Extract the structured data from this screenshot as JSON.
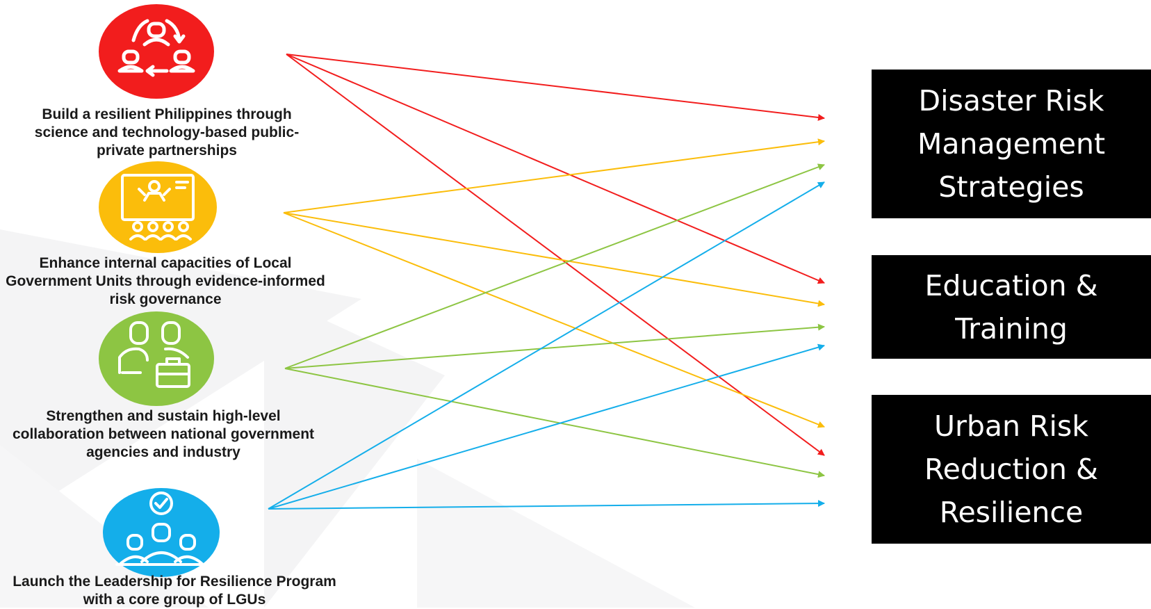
{
  "goals": [
    {
      "label": "Build a resilient Philippines through science and technology-based public-private partnerships",
      "color": "#f21d1d",
      "icon": "cycle-people-icon"
    },
    {
      "label": "Enhance internal capacities of Local Government Units through evidence-informed risk governance",
      "color": "#fbbd0b",
      "icon": "presentation-icon"
    },
    {
      "label": "Strengthen and sustain high-level collaboration between national government agencies and industry",
      "color": "#8dc543",
      "icon": "business-collaboration-icon"
    },
    {
      "label": "Launch the Leadership for Resilience Program with a core group of LGUs",
      "color": "#14aeea",
      "icon": "leadership-team-icon"
    }
  ],
  "strategies": [
    {
      "label": "Disaster Risk Management Strategies"
    },
    {
      "label": "Education & Training"
    },
    {
      "label": "Urban Risk Reduction & Resilience"
    }
  ],
  "connections": [
    {
      "from": 0,
      "color": "#f21d1d",
      "to": "Disaster Risk Management Strategies"
    },
    {
      "from": 0,
      "color": "#f21d1d",
      "to": "Education & Training"
    },
    {
      "from": 0,
      "color": "#f21d1d",
      "to": "Urban Risk Reduction & Resilience"
    },
    {
      "from": 1,
      "color": "#fbbd0b",
      "to": "Disaster Risk Management Strategies"
    },
    {
      "from": 1,
      "color": "#fbbd0b",
      "to": "Education & Training"
    },
    {
      "from": 1,
      "color": "#fbbd0b",
      "to": "Urban Risk Reduction & Resilience"
    },
    {
      "from": 2,
      "color": "#8dc543",
      "to": "Disaster Risk Management Strategies"
    },
    {
      "from": 2,
      "color": "#8dc543",
      "to": "Education & Training"
    },
    {
      "from": 2,
      "color": "#8dc543",
      "to": "Urban Risk Reduction & Resilience"
    },
    {
      "from": 3,
      "color": "#14aeea",
      "to": "Disaster Risk Management Strategies"
    },
    {
      "from": 3,
      "color": "#14aeea",
      "to": "Education & Training"
    },
    {
      "from": 3,
      "color": "#14aeea",
      "to": "Urban Risk Reduction & Resilience"
    }
  ]
}
